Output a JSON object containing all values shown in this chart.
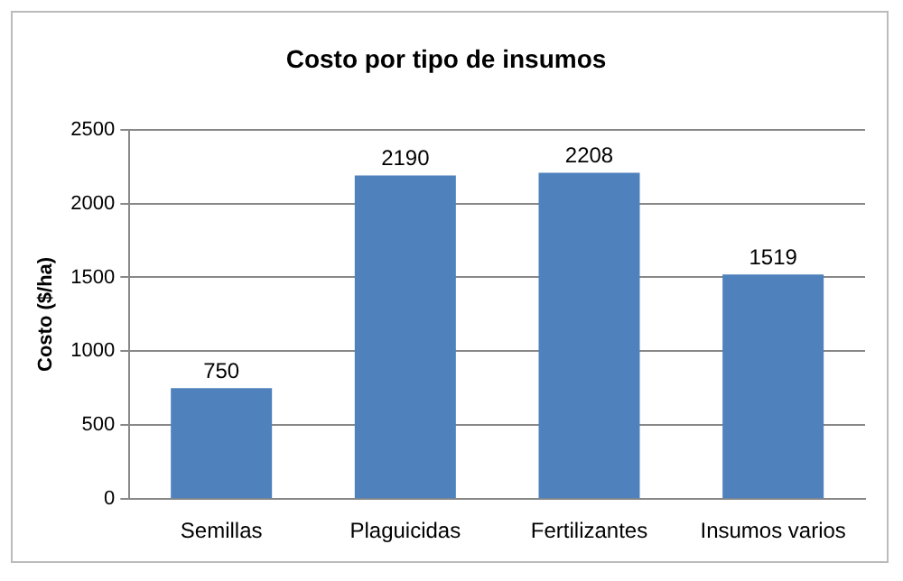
{
  "chart_data": {
    "type": "bar",
    "title": "Costo por tipo de insumos",
    "ylabel": "Costo ($/ha)",
    "categories": [
      "Semillas",
      "Plaguicidas",
      "Fertilizantes",
      "Insumos varios"
    ],
    "values": [
      750,
      2190,
      2208,
      1519
    ],
    "color": "#4f81bd",
    "ylim": [
      0,
      2500
    ],
    "yticks": [
      0,
      500,
      1000,
      1500,
      2000,
      2500
    ],
    "grid": "y",
    "data_labels": true,
    "legend": false
  }
}
